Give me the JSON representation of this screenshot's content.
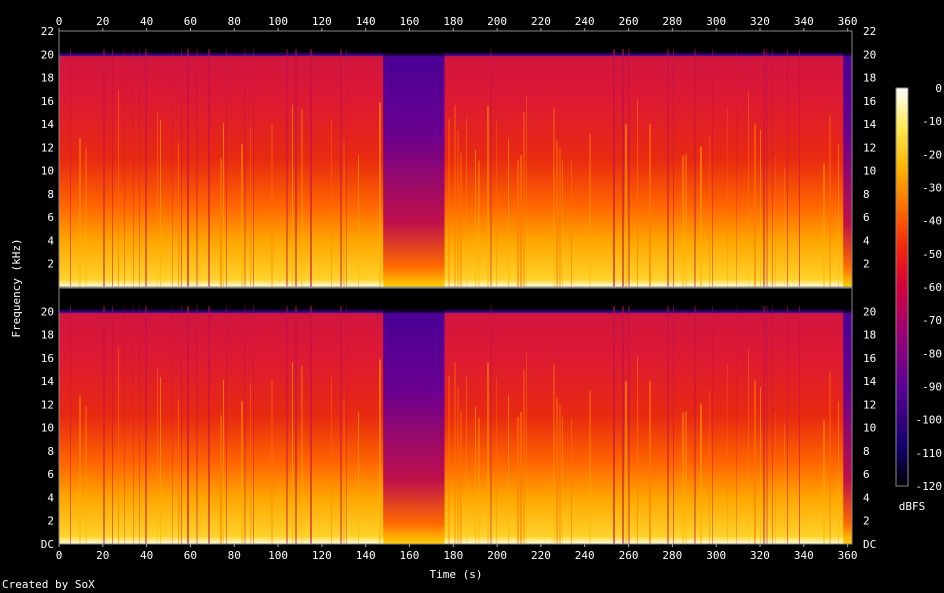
{
  "chart_data": {
    "type": "heatmap",
    "title": "",
    "xlabel": "Time (s)",
    "ylabel": "Frequency (kHz)",
    "xlim": [
      0,
      362
    ],
    "ylim": [
      0,
      22
    ],
    "x_ticks": [
      "0",
      "20",
      "40",
      "60",
      "80",
      "100",
      "120",
      "140",
      "160",
      "180",
      "200",
      "220",
      "240",
      "260",
      "280",
      "300",
      "320",
      "340",
      "360"
    ],
    "y_ticks_top": [
      "22",
      "20",
      "18",
      "16",
      "14",
      "12",
      "10",
      "8",
      "6",
      "4",
      "2"
    ],
    "y_ticks_bottom": [
      "DC",
      "2",
      "4",
      "6",
      "8",
      "10",
      "12",
      "14",
      "16",
      "18",
      "20"
    ],
    "channels": 2,
    "spectral_cutoff_khz": 20,
    "colorbar": {
      "label": "dBFS",
      "range": [
        -120,
        0
      ],
      "ticks": [
        "0",
        "-10",
        "-20",
        "-30",
        "-40",
        "-50",
        "-60",
        "-70",
        "-80",
        "-90",
        "-100",
        "-110",
        "-120"
      ],
      "colors": [
        "#000000",
        "#14006b",
        "#5a0096",
        "#9a0078",
        "#d6003c",
        "#f4260a",
        "#ff6e00",
        "#ffb400",
        "#ffe850",
        "#ffffff"
      ]
    },
    "quiet_sections_s": [
      [
        148,
        176
      ],
      [
        358,
        362
      ]
    ],
    "loud_sections_s": [
      [
        0,
        147
      ],
      [
        176,
        357
      ]
    ]
  },
  "footer": "Created by SoX"
}
